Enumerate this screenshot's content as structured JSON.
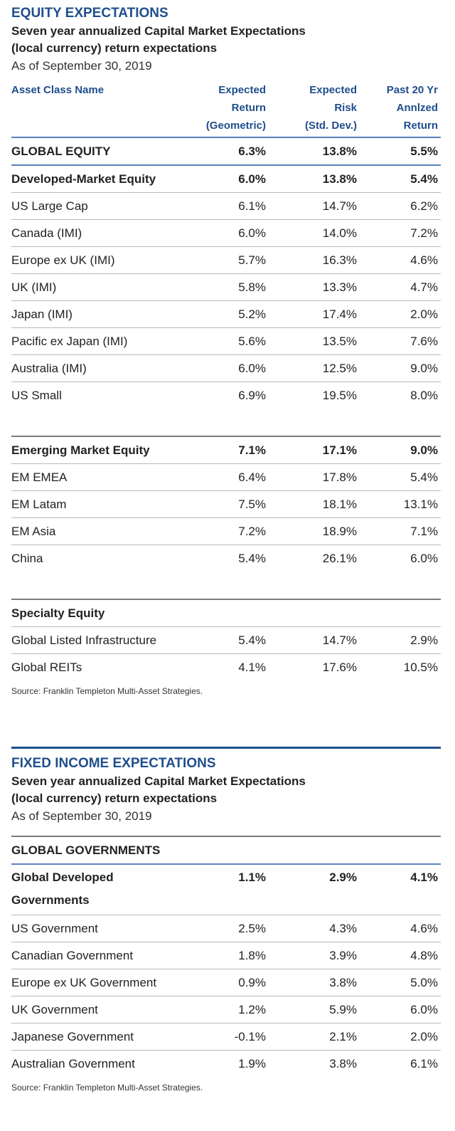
{
  "equity": {
    "title": "EQUITY EXPECTATIONS",
    "subtitle_line1": "Seven year annualized Capital Market Expectations",
    "subtitle_line2": "(local currency) return expectations",
    "as_of": "As of September 30, 2019",
    "headers": {
      "name": "Asset Class Name",
      "col1": [
        "Expected",
        "Return",
        "(Geometric)"
      ],
      "col2": [
        "Expected",
        "Risk",
        "(Std. Dev.)"
      ],
      "col3": [
        "Past 20 Yr",
        "Annlzed",
        "Return"
      ]
    },
    "global": {
      "name": "GLOBAL EQUITY",
      "ret": "6.3%",
      "risk": "13.8%",
      "past": "5.5%"
    },
    "developed": [
      {
        "name": "Developed-Market Equity",
        "ret": "6.0%",
        "risk": "13.8%",
        "past": "5.4%"
      },
      {
        "name": "US Large Cap",
        "ret": "6.1%",
        "risk": "14.7%",
        "past": "6.2%"
      },
      {
        "name": "Canada (IMI)",
        "ret": "6.0%",
        "risk": "14.0%",
        "past": "7.2%"
      },
      {
        "name": "Europe ex UK (IMI)",
        "ret": "5.7%",
        "risk": "16.3%",
        "past": "4.6%"
      },
      {
        "name": "UK (IMI)",
        "ret": "5.8%",
        "risk": "13.3%",
        "past": "4.7%"
      },
      {
        "name": "Japan (IMI)",
        "ret": "5.2%",
        "risk": "17.4%",
        "past": "2.0%"
      },
      {
        "name": "Pacific ex Japan (IMI)",
        "ret": "5.6%",
        "risk": "13.5%",
        "past": "7.6%"
      },
      {
        "name": "Australia (IMI)",
        "ret": "6.0%",
        "risk": "12.5%",
        "past": "9.0%"
      },
      {
        "name": "US Small",
        "ret": "6.9%",
        "risk": "19.5%",
        "past": "8.0%"
      }
    ],
    "emerging": [
      {
        "name": "Emerging Market Equity",
        "ret": "7.1%",
        "risk": "17.1%",
        "past": "9.0%"
      },
      {
        "name": "EM EMEA",
        "ret": "6.4%",
        "risk": "17.8%",
        "past": "5.4%"
      },
      {
        "name": "EM Latam",
        "ret": "7.5%",
        "risk": "18.1%",
        "past": "13.1%"
      },
      {
        "name": "EM Asia",
        "ret": "7.2%",
        "risk": "18.9%",
        "past": "7.1%"
      },
      {
        "name": "China",
        "ret": "5.4%",
        "risk": "26.1%",
        "past": "6.0%"
      }
    ],
    "specialty": [
      {
        "name": "Specialty Equity",
        "ret": "",
        "risk": "",
        "past": ""
      },
      {
        "name": "Global Listed Infrastructure",
        "ret": "5.4%",
        "risk": "14.7%",
        "past": "2.9%"
      },
      {
        "name": "Global REITs",
        "ret": "4.1%",
        "risk": "17.6%",
        "past": "10.5%"
      }
    ],
    "source": "Source: Franklin Templeton Multi-Asset Strategies."
  },
  "fixed": {
    "title": "FIXED INCOME EXPECTATIONS",
    "subtitle_line1": "Seven year annualized Capital Market Expectations",
    "subtitle_line2": "(local currency) return expectations",
    "as_of": "As of September 30, 2019",
    "global_label": "GLOBAL GOVERNMENTS",
    "developed_head": {
      "name_line1": "Global Developed",
      "name_line2": "Governments",
      "ret": "1.1%",
      "risk": "2.9%",
      "past": "4.1%"
    },
    "rows": [
      {
        "name": "US Government",
        "ret": "2.5%",
        "risk": "4.3%",
        "past": "4.6%"
      },
      {
        "name": "Canadian Government",
        "ret": "1.8%",
        "risk": "3.9%",
        "past": "4.8%"
      },
      {
        "name": "Europe ex UK Government",
        "ret": "0.9%",
        "risk": "3.8%",
        "past": "5.0%"
      },
      {
        "name": "UK Government",
        "ret": "1.2%",
        "risk": "5.9%",
        "past": "6.0%"
      },
      {
        "name": "Japanese Government",
        "ret": "-0.1%",
        "risk": "2.1%",
        "past": "2.0%"
      },
      {
        "name": "Australian Government",
        "ret": "1.9%",
        "risk": "3.8%",
        "past": "6.1%"
      }
    ],
    "source": "Source: Franklin Templeton Multi-Asset Strategies."
  }
}
